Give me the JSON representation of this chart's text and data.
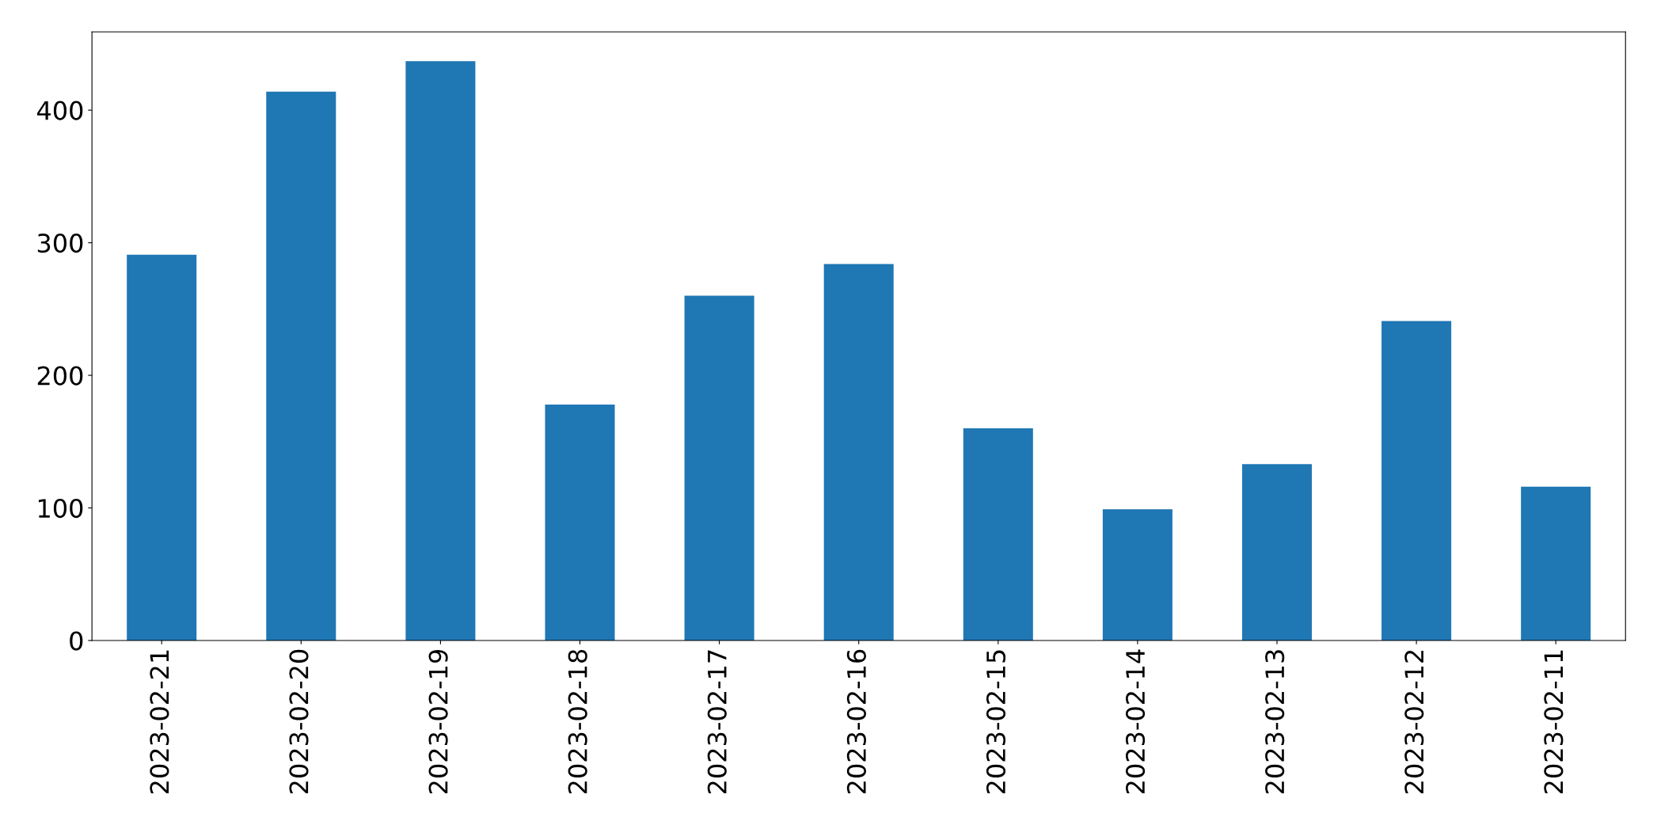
{
  "chart_data": {
    "type": "bar",
    "categories": [
      "2023-02-21",
      "2023-02-20",
      "2023-02-19",
      "2023-02-18",
      "2023-02-17",
      "2023-02-16",
      "2023-02-15",
      "2023-02-14",
      "2023-02-13",
      "2023-02-12",
      "2023-02-11"
    ],
    "values": [
      291,
      414,
      437,
      178,
      260,
      284,
      160,
      99,
      133,
      241,
      116
    ],
    "color": "#1f77b4",
    "ylim": [
      0,
      459
    ],
    "yticks": [
      0,
      100,
      200,
      300,
      400
    ],
    "grid": false
  }
}
